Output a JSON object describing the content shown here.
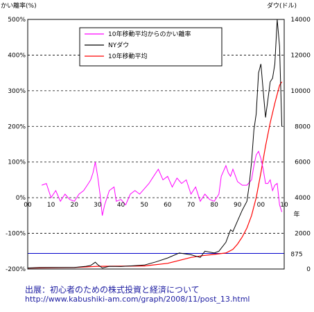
{
  "chart_data": {
    "type": "line",
    "left_axis": {
      "title": "かい離率(%)",
      "ticks": [
        "500%",
        "400%",
        "300%",
        "200%",
        "100%",
        "0%",
        "-100%",
        "-200%"
      ],
      "ylim": [
        -200,
        500
      ]
    },
    "right_axis": {
      "title": "ダウ(ドル)",
      "ticks": [
        "14000",
        "12000",
        "10000",
        "8000",
        "6000",
        "4000",
        "2000",
        "0"
      ],
      "ylim": [
        0,
        14000
      ]
    },
    "x_axis": {
      "ticks": [
        "00",
        "10",
        "20",
        "30",
        "40",
        "50",
        "60",
        "70",
        "80",
        "90",
        "00",
        "10"
      ],
      "unit": "年"
    },
    "legend": [
      "10年移動平均からのかい離率",
      "NYダウ",
      "10年移動平均"
    ],
    "series": [
      {
        "name": "10年移動平均からのかい離率",
        "color": "#ff00ff",
        "axis": "left",
        "x": [
          1906,
          1908,
          1910,
          1912,
          1914,
          1916,
          1918,
          1920,
          1922,
          1924,
          1926,
          1927,
          1928,
          1929,
          1930,
          1931,
          1932,
          1933,
          1935,
          1937,
          1938,
          1940,
          1942,
          1944,
          1946,
          1948,
          1950,
          1952,
          1954,
          1956,
          1958,
          1960,
          1962,
          1964,
          1966,
          1968,
          1970,
          1972,
          1974,
          1976,
          1978,
          1980,
          1982,
          1983,
          1985,
          1986,
          1987,
          1988,
          1990,
          1992,
          1994,
          1996,
          1997,
          1998,
          1999,
          2000,
          2001,
          2002,
          2003,
          2004,
          2005,
          2006,
          2007,
          2008,
          2009
        ],
        "y": [
          35,
          40,
          0,
          20,
          -10,
          10,
          -5,
          -10,
          10,
          20,
          40,
          50,
          70,
          100,
          60,
          10,
          -50,
          -20,
          20,
          30,
          -10,
          -5,
          -20,
          10,
          20,
          10,
          25,
          40,
          60,
          80,
          50,
          60,
          30,
          55,
          40,
          50,
          10,
          30,
          -10,
          10,
          -5,
          -10,
          10,
          60,
          90,
          70,
          60,
          80,
          45,
          35,
          35,
          50,
          90,
          120,
          130,
          110,
          80,
          40,
          40,
          50,
          20,
          35,
          40,
          -20,
          -40
        ]
      },
      {
        "name": "NYダウ",
        "color": "#000000",
        "axis": "right",
        "x": [
          1900,
          1905,
          1910,
          1915,
          1920,
          1925,
          1927,
          1929,
          1930,
          1932,
          1935,
          1940,
          1945,
          1950,
          1955,
          1960,
          1965,
          1970,
          1974,
          1976,
          1980,
          1982,
          1985,
          1987,
          1988,
          1990,
          1992,
          1994,
          1995,
          1996,
          1997,
          1998,
          1999,
          2000,
          2001,
          2002,
          2003,
          2004,
          2005,
          2006,
          2007,
          2008,
          2009
        ],
        "y": [
          60,
          80,
          90,
          90,
          90,
          150,
          200,
          380,
          250,
          60,
          150,
          140,
          180,
          220,
          400,
          620,
          900,
          800,
          650,
          1000,
          900,
          1000,
          1500,
          2200,
          2100,
          2700,
          3300,
          3800,
          4700,
          6000,
          7800,
          8700,
          11000,
          11500,
          10000,
          8500,
          9500,
          10500,
          10700,
          11500,
          14000,
          12500,
          8000
        ]
      },
      {
        "name": "10年移動平均",
        "color": "#ff0000",
        "axis": "right",
        "x": [
          1900,
          1910,
          1920,
          1930,
          1940,
          1950,
          1960,
          1970,
          1975,
          1980,
          1983,
          1985,
          1988,
          1990,
          1992,
          1994,
          1996,
          1998,
          2000,
          2002,
          2004,
          2006,
          2008,
          2009
        ],
        "y": [
          50,
          70,
          85,
          150,
          160,
          170,
          320,
          650,
          750,
          820,
          870,
          900,
          1100,
          1400,
          1800,
          2300,
          3000,
          4000,
          5400,
          6900,
          8200,
          9300,
          10300,
          10500
        ]
      }
    ],
    "reference_line": {
      "label": "875",
      "value": 875,
      "axis": "right",
      "color": "#0000cc"
    },
    "grid": "dashed horizontal",
    "legend_placement": "top-center"
  },
  "caption": {
    "source_label": "出展：初心者のための株式投資と経済について",
    "url": "http://www.kabushiki-am.com/graph/2008/11/post_13.html"
  }
}
